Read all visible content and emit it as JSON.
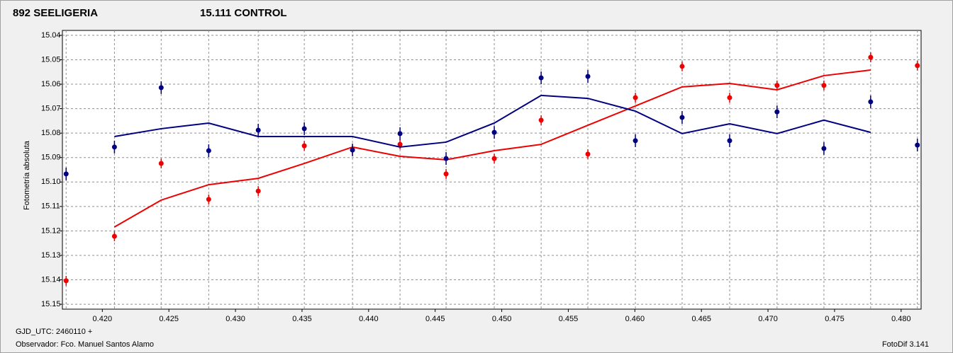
{
  "chart_data": {
    "type": "errorbar",
    "title_series_note": null,
    "ylabel": "Fotometría absoluta",
    "footer_left_1": "GJD_UTC: 2460110 +",
    "footer_left_2": "Observador: Fco. Manuel Santos Alamo",
    "footer_right": "FotoDif 3.141",
    "x": [
      0.41728,
      0.42091,
      0.42442,
      0.42799,
      0.43171,
      0.43517,
      0.43879,
      0.44236,
      0.44582,
      0.44944,
      0.45296,
      0.45647,
      0.46004,
      0.46355,
      0.46712,
      0.47068,
      0.4742,
      0.47771,
      0.48122
    ],
    "series": [
      {
        "name": "892 SEELIGERIA",
        "color": "#ee0000",
        "error": 0.002,
        "values": [
          15.1404,
          15.1222,
          15.0924,
          15.1071,
          15.1037,
          15.0852,
          15.0869,
          15.0846,
          15.0967,
          15.0904,
          15.0747,
          15.0886,
          15.0655,
          15.0527,
          15.0655,
          15.0605,
          15.0605,
          15.049,
          15.0524
        ],
        "fit": [
          null,
          15.1184,
          15.1074,
          15.1011,
          15.0985,
          15.0924,
          15.0857,
          15.0895,
          15.0909,
          15.0872,
          15.0846,
          15.0768,
          15.0689,
          15.0611,
          15.0597,
          15.0623,
          15.0565,
          15.0542,
          null
        ]
      },
      {
        "name": "15.111 CONTROL",
        "color": "#000080",
        "error": 0.0026,
        "values": [
          15.0967,
          15.0857,
          15.0614,
          15.0872,
          15.0788,
          15.0782,
          15.0869,
          15.0802,
          15.0904,
          15.0797,
          15.0574,
          15.0568,
          15.0831,
          15.0736,
          15.0831,
          15.0713,
          15.0863,
          15.0672,
          15.0849
        ],
        "fit": [
          null,
          15.0814,
          15.0782,
          15.0759,
          15.0814,
          15.0814,
          15.0814,
          15.0857,
          15.0837,
          15.0759,
          15.0646,
          15.0658,
          15.071,
          15.0802,
          15.0762,
          15.0802,
          15.0747,
          15.0797,
          null
        ]
      }
    ],
    "xlim": [
      0.417,
      0.4815
    ],
    "ylim": [
      15.038,
      15.152
    ],
    "y_inverted": true,
    "grid": true,
    "xticks": [
      {
        "value": 0.42,
        "label": "0.420"
      },
      {
        "value": 0.425,
        "label": "0.425"
      },
      {
        "value": 0.43,
        "label": "0.430"
      },
      {
        "value": 0.435,
        "label": "0.435"
      },
      {
        "value": 0.44,
        "label": "0.440"
      },
      {
        "value": 0.445,
        "label": "0.445"
      },
      {
        "value": 0.45,
        "label": "0.450"
      },
      {
        "value": 0.455,
        "label": "0.455"
      },
      {
        "value": 0.46,
        "label": "0.460"
      },
      {
        "value": 0.465,
        "label": "0.465"
      },
      {
        "value": 0.47,
        "label": "0.470"
      },
      {
        "value": 0.475,
        "label": "0.475"
      },
      {
        "value": 0.48,
        "label": "0.480"
      }
    ],
    "yticks": [
      15.04,
      15.05,
      15.06,
      15.07,
      15.08,
      15.09,
      {
        "value": 15.1,
        "label": "15.10"
      },
      15.11,
      15.12,
      15.13,
      15.14,
      15.15
    ]
  }
}
